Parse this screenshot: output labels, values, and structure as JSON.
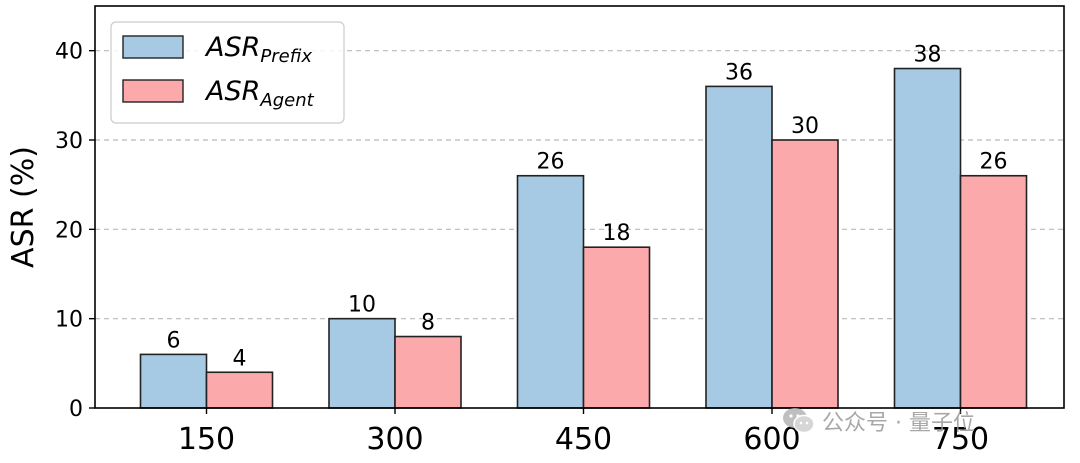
{
  "chart_data": {
    "type": "bar",
    "categories": [
      "150",
      "300",
      "450",
      "600",
      "750"
    ],
    "series": [
      {
        "name": "ASR",
        "subscript": "Prefix",
        "values": [
          6,
          10,
          26,
          36,
          38
        ],
        "color": "#a6cae4"
      },
      {
        "name": "ASR",
        "subscript": "Agent",
        "values": [
          4,
          8,
          18,
          30,
          26
        ],
        "color": "#fca9ab"
      }
    ],
    "title": "",
    "xlabel": "",
    "ylabel": "ASR (%)",
    "ylim": [
      0,
      45
    ],
    "yticks": [
      0,
      10,
      20,
      30,
      40
    ],
    "grid": "horizontal-dashed",
    "legend": "top-left",
    "edge_color": "#222222"
  },
  "watermark": {
    "text": "公众号 · 量子位",
    "icon": "wechat-icon"
  }
}
